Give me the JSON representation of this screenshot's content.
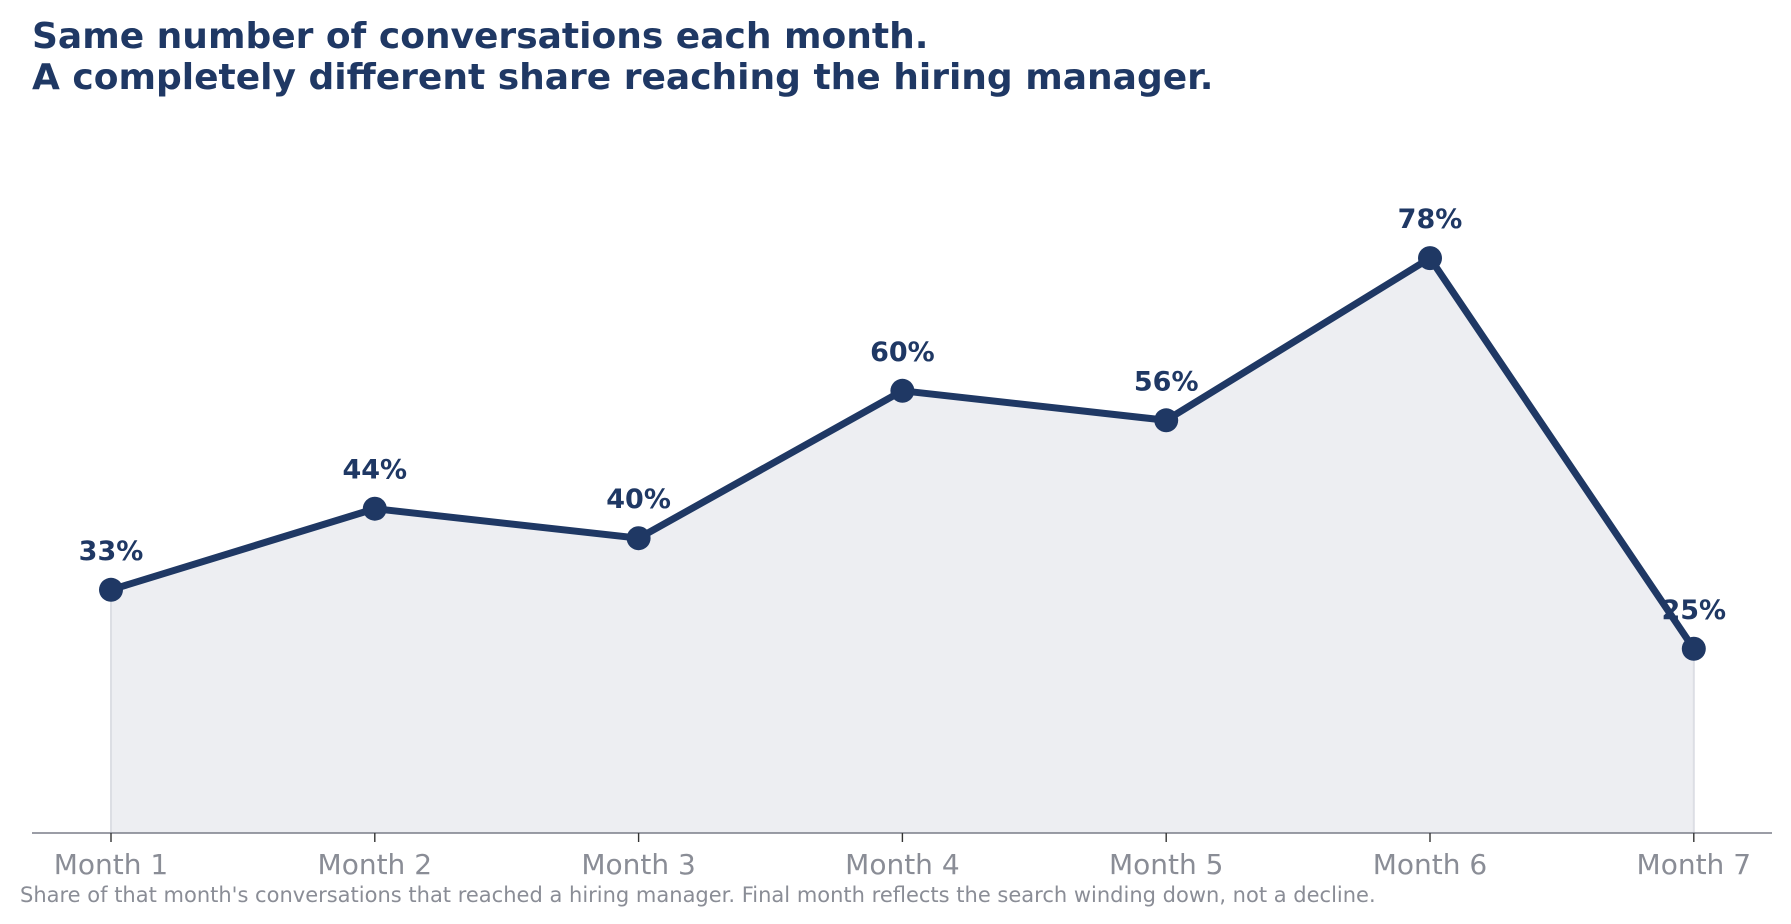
{
  "colors": {
    "line": "#1f3864",
    "area_fill": "#edeef2",
    "axis": "#7a7d88",
    "tick_text": "#8a8d96",
    "title": "#1f3864",
    "footnote": "#8a8d96"
  },
  "chart_data": {
    "type": "line",
    "title": "Same number of conversations each month.",
    "subtitle": "A completely different share reaching the hiring manager.",
    "xlabel": "",
    "ylabel": "",
    "categories": [
      "Month 1",
      "Month 2",
      "Month 3",
      "Month 4",
      "Month 5",
      "Month 6",
      "Month 7"
    ],
    "series": [
      {
        "values": [
          33,
          44,
          40,
          60,
          56,
          78,
          25
        ],
        "labels": [
          "33%",
          "44%",
          "40%",
          "60%",
          "56%",
          "78%",
          "25%"
        ]
      }
    ],
    "ylim": [
      0,
      100
    ],
    "grid": false,
    "legend": "none",
    "area_fill": true,
    "footnote": "Share of that month's conversations that reached a hiring manager. Final month reflects the search winding down, not a decline."
  }
}
